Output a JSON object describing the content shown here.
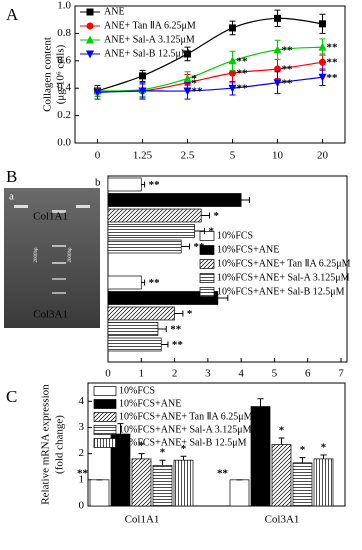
{
  "gel": {
    "label": "a",
    "markers": [
      "2000bp",
      "2000bp"
    ]
  },
  "chart_data": [
    {
      "type": "line",
      "panel_label": "A",
      "ylabel": [
        "Collagen content",
        "(μg/10⁶ cells)"
      ],
      "categories": [
        "0",
        "1.25",
        "2.5",
        "5",
        "10",
        "20"
      ],
      "ylim": [
        0,
        1
      ],
      "yticks": [
        {
          "value": 0,
          "label": "0.0"
        },
        {
          "value": 0.2,
          "label": "0.2"
        },
        {
          "value": 0.4,
          "label": "0.4"
        },
        {
          "value": 0.6,
          "label": "0.6"
        },
        {
          "value": 0.8,
          "label": "0.8"
        },
        {
          "value": 1,
          "label": "1.0"
        }
      ],
      "legend": "upper left",
      "series": [
        {
          "name": "ANE",
          "color": "#000000",
          "marker": "square",
          "values": [
            0.38,
            0.49,
            0.65,
            0.84,
            0.91,
            0.87
          ],
          "errors": [
            0.04,
            0.04,
            0.05,
            0.05,
            0.06,
            0.07
          ],
          "annotations": [
            null,
            null,
            null,
            null,
            null,
            null
          ]
        },
        {
          "name": "ANE+ Tan ⅡA 6.25μM",
          "color": "#ff0000",
          "marker": "circle",
          "values": [
            0.38,
            0.38,
            0.44,
            0.51,
            0.54,
            0.59
          ],
          "errors": [
            0.04,
            0.05,
            0.06,
            0.07,
            0.07,
            0.06
          ],
          "annotations": [
            null,
            null,
            "*",
            "**",
            "**",
            "**"
          ]
        },
        {
          "name": "ANE+ Sal-A 3.125μM",
          "color": "#00cc00",
          "marker": "triangle",
          "values": [
            0.38,
            0.39,
            0.47,
            0.6,
            0.68,
            0.7
          ],
          "errors": [
            0.04,
            0.05,
            0.05,
            0.07,
            0.07,
            0.06
          ],
          "annotations": [
            null,
            null,
            "*",
            "**",
            "**",
            "**"
          ]
        },
        {
          "name": "ANE+ Sal-B 12.5μM",
          "color": "#0000ff",
          "marker": "triangle-down",
          "values": [
            0.37,
            0.38,
            0.38,
            0.4,
            0.44,
            0.48
          ],
          "errors": [
            0.05,
            0.06,
            0.06,
            0.05,
            0.08,
            0.06
          ],
          "annotations": [
            null,
            null,
            "**",
            "**",
            "**",
            "**"
          ]
        }
      ]
    },
    {
      "type": "barh",
      "panel_label": "B",
      "subplot_label": "b",
      "categories": [
        "Col1A1",
        "Col3A1"
      ],
      "xlim": [
        0,
        7
      ],
      "xticks": [
        0,
        1,
        2,
        3,
        4,
        5,
        6,
        7
      ],
      "legend": "center right",
      "series": [
        {
          "name": "10%FCS",
          "fill": "white",
          "values": [
            1.0,
            1.0
          ],
          "errors": [
            0.1,
            0.1
          ],
          "annotations": [
            "**",
            "**"
          ]
        },
        {
          "name": "10%FCS+ANE",
          "fill": "black",
          "values": [
            4.0,
            3.3
          ],
          "errors": [
            0.25,
            0.3
          ],
          "annotations": [
            null,
            null
          ]
        },
        {
          "name": "10%FCS+ANE+ Tan ⅡA 6.25μM",
          "fill": "diagonal",
          "values": [
            2.8,
            2.0
          ],
          "errors": [
            0.25,
            0.25
          ],
          "annotations": [
            "*",
            "*"
          ]
        },
        {
          "name": "10%FCS+ANE+ Sal-A 3.125μM",
          "fill": "horizontal",
          "values": [
            2.6,
            1.5
          ],
          "errors": [
            0.3,
            0.25
          ],
          "annotations": [
            "*",
            "**"
          ]
        },
        {
          "name": "10%FCS+ANE+ Sal-B 12.5μM",
          "fill": "horizontal",
          "values": [
            2.2,
            1.6
          ],
          "errors": [
            0.25,
            0.2
          ],
          "annotations": [
            "**",
            "**"
          ]
        }
      ]
    },
    {
      "type": "bar",
      "panel_label": "C",
      "ylabel": [
        "Relative mRNA expression",
        "(fold change)"
      ],
      "categories": [
        "Col1A1",
        "Col3A1"
      ],
      "ylim": [
        0,
        4.7
      ],
      "yticks": [
        0,
        1,
        2,
        3,
        4
      ],
      "legend": "upper left",
      "series": [
        {
          "name": "10%FCS",
          "fill": "white",
          "values": [
            1.0,
            1.0
          ],
          "errors": [
            0,
            0
          ],
          "annotations": [
            "**",
            "**"
          ]
        },
        {
          "name": "10%FCS+ANE",
          "fill": "black",
          "values": [
            2.75,
            3.8
          ],
          "errors": [
            0.4,
            0.3
          ],
          "annotations": [
            null,
            null
          ]
        },
        {
          "name": "10%FCS+ANE+ Tan ⅡA 6.25μM",
          "fill": "diagonal",
          "values": [
            1.8,
            2.35
          ],
          "errors": [
            0.2,
            0.25
          ],
          "annotations": [
            "*",
            "*"
          ]
        },
        {
          "name": "10%FCS+ANE+ Sal-A 3.125μM",
          "fill": "horizontal",
          "values": [
            1.55,
            1.65
          ],
          "errors": [
            0.2,
            0.2
          ],
          "annotations": [
            "*",
            "*"
          ]
        },
        {
          "name": "10%FCS+ANE+ Sal-B 12.5μM",
          "fill": "vertical",
          "values": [
            1.75,
            1.8
          ],
          "errors": [
            0.15,
            0.15
          ],
          "annotations": [
            "*",
            "*"
          ]
        }
      ]
    }
  ]
}
